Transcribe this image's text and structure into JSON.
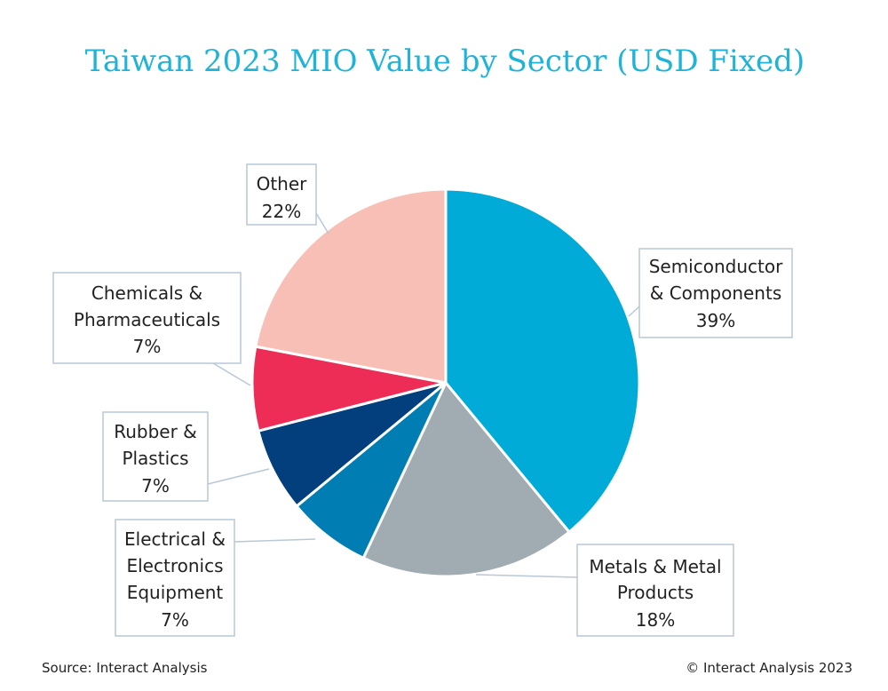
{
  "footer": {
    "source": "Source: Interact Analysis",
    "copyright": "© Interact Analysis 2023"
  },
  "chart_data": {
    "type": "pie",
    "title": "Taiwan 2023 MIO Value by Sector (USD Fixed)",
    "unit": "%",
    "start": "12 o'clock",
    "direction": "clockwise",
    "slices": [
      {
        "key": "semi",
        "label_lines": [
          "Semiconductor",
          "& Components"
        ],
        "value_label": "39%",
        "value": 39,
        "color": "#00acd7"
      },
      {
        "key": "metals",
        "label_lines": [
          "Metals & Metal",
          "Products"
        ],
        "value_label": "18%",
        "value": 18,
        "color": "#a1abb2"
      },
      {
        "key": "electrical",
        "label_lines": [
          "Electrical &",
          "Electronics",
          "Equipment"
        ],
        "value_label": "7%",
        "value": 7,
        "color": "#007db3"
      },
      {
        "key": "rubber",
        "label_lines": [
          "Rubber &",
          "Plastics"
        ],
        "value_label": "7%",
        "value": 7,
        "color": "#023f7c"
      },
      {
        "key": "chemicals",
        "label_lines": [
          "Chemicals &",
          "Pharmaceuticals"
        ],
        "value_label": "7%",
        "value": 7,
        "color": "#ed2d55"
      },
      {
        "key": "other",
        "label_lines": [
          "Other"
        ],
        "value_label": "22%",
        "value": 22,
        "color": "#f8bfb7"
      }
    ]
  }
}
